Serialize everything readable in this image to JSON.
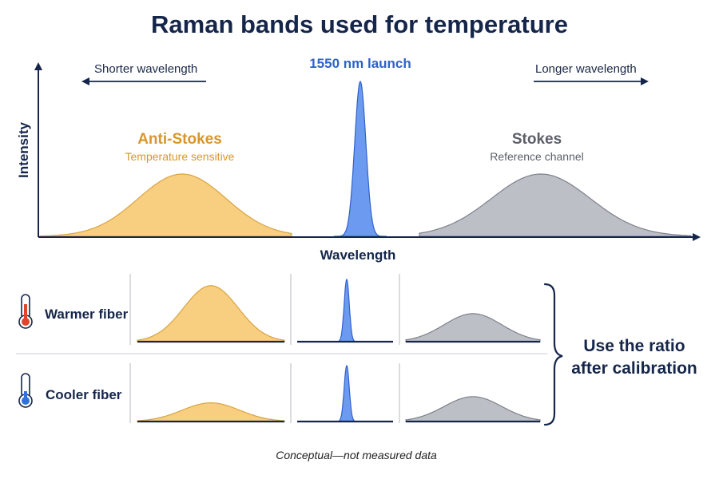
{
  "title": "Raman bands used for temperature",
  "direction": {
    "shorter": "Shorter wavelength",
    "longer": "Longer wavelength"
  },
  "launch_label": "1550 nm launch",
  "anti_stokes": {
    "name": "Anti-Stokes",
    "subtitle": "Temperature sensitive"
  },
  "stokes": {
    "name": "Stokes",
    "subtitle": "Reference channel"
  },
  "axes": {
    "x": "Wavelength",
    "y": "Intensity"
  },
  "rows": [
    {
      "label": "Warmer fiber",
      "icon": "thermometer-hot-icon"
    },
    {
      "label": "Cooler fiber",
      "icon": "thermometer-cold-icon"
    }
  ],
  "ratio_note": {
    "line1": "Use the ratio",
    "line2": "after calibration"
  },
  "footnote": "Conceptual—not measured data",
  "colors": {
    "anti_stokes": "#f2b84d",
    "anti_stokes_text": "#d9962a",
    "laser": "#4f86e6",
    "stokes": "#b9bcc4",
    "stokes_text": "#5b5f69",
    "ink": "#15264a",
    "hot": "#e0452b",
    "cold": "#2f73d8"
  },
  "chart_data": {
    "type": "area",
    "x_label": "Wavelength",
    "y_label": "Intensity",
    "bands": [
      {
        "name": "Anti-Stokes",
        "relative_intensity_warm": 0.9,
        "relative_intensity_cool": 0.3
      },
      {
        "name": "1550 nm launch",
        "relative_intensity_warm": 1.0,
        "relative_intensity_cool": 1.0
      },
      {
        "name": "Stokes",
        "relative_intensity_warm": 0.45,
        "relative_intensity_cool": 0.4
      }
    ]
  }
}
